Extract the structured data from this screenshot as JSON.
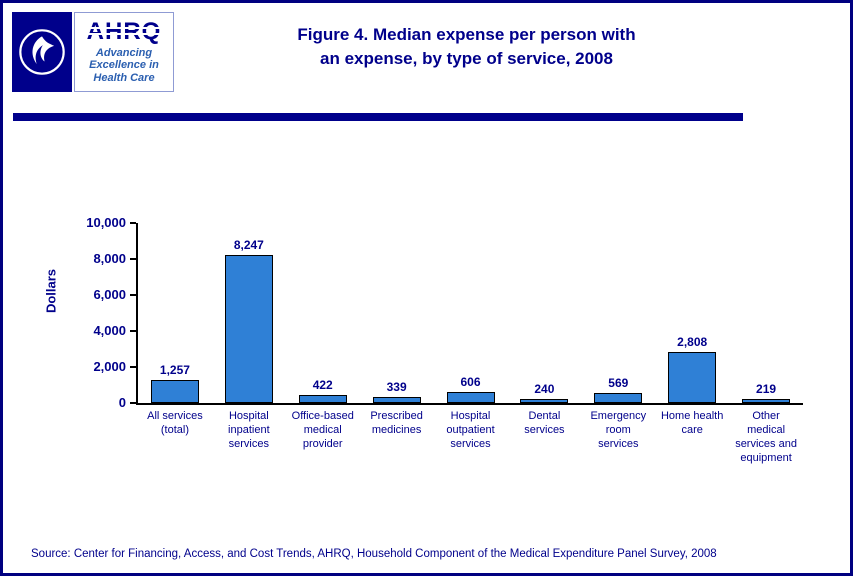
{
  "header": {
    "title_line1": "Figure 4. Median expense per person with",
    "title_line2": "an expense, by type of service, 2008",
    "ahrq_logo_text": "AHRQ",
    "ahrq_tagline": "Advancing\nExcellence in\nHealth Care"
  },
  "footer": {
    "source": "Source: Center for Financing, Access, and Cost Trends, AHRQ, Household Component of the Medical Expenditure Panel Survey, 2008"
  },
  "colors": {
    "navy_text": "#00008B",
    "page_border": "#000080",
    "bar_fill": "#2F80D6",
    "bar_border": "#000000",
    "tagline_blue": "#2B5FB0"
  },
  "chart_data": {
    "type": "bar",
    "title": "Figure 4. Median expense per person with an expense, by type of service, 2008",
    "xlabel": "",
    "ylabel": "Dollars",
    "ylim": [
      0,
      10000
    ],
    "grid": false,
    "legend": null,
    "yticks": [
      {
        "value": 0,
        "label": "0"
      },
      {
        "value": 2000,
        "label": "2,000"
      },
      {
        "value": 4000,
        "label": "4,000"
      },
      {
        "value": 6000,
        "label": "6,000"
      },
      {
        "value": 8000,
        "label": "8,000"
      },
      {
        "value": 10000,
        "label": "10,000"
      }
    ],
    "categories": [
      "All services\n(total)",
      "Hospital\ninpatient\nservices",
      "Office-based\nmedical\nprovider",
      "Prescribed\nmedicines",
      "Hospital\noutpatient\nservices",
      "Dental\nservices",
      "Emergency\nroom\nservices",
      "Home health\ncare",
      "Other\nmedical\nservices and\nequipment"
    ],
    "values": [
      1257,
      8247,
      422,
      339,
      606,
      240,
      569,
      2808,
      219
    ],
    "value_labels": [
      "1,257",
      "8,247",
      "422",
      "339",
      "606",
      "240",
      "569",
      "2,808",
      "219"
    ]
  }
}
